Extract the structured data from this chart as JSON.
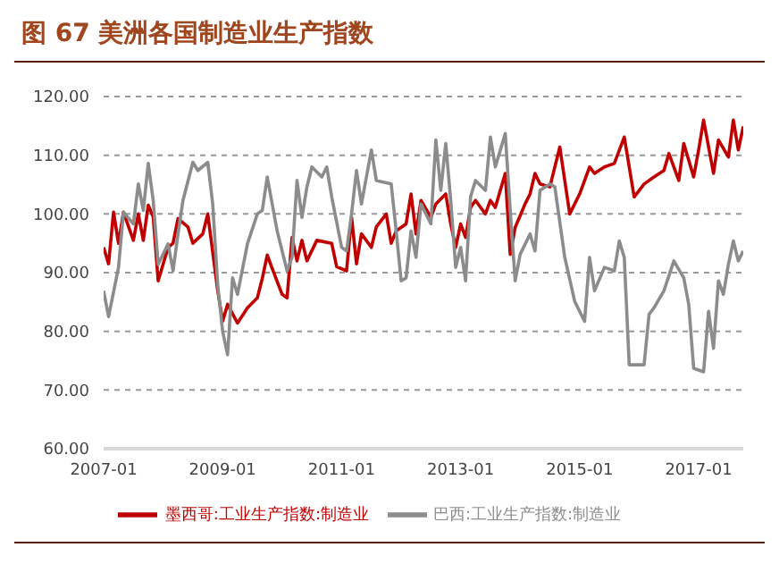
{
  "chart_data": {
    "type": "line",
    "title": "图 67  美洲各国制造业生产指数",
    "xlim": [
      "2007-01",
      "2017-10"
    ],
    "xticks": [
      "2007-01",
      "2009-01",
      "2011-01",
      "2013-01",
      "2015-01",
      "2017-01"
    ],
    "ylim": [
      60,
      120
    ],
    "yticks": [
      {
        "value": 60,
        "label": "60.00"
      },
      {
        "value": 70,
        "label": "70.00"
      },
      {
        "value": 80,
        "label": "80.00"
      },
      {
        "value": 90,
        "label": "90.00"
      },
      {
        "value": 100,
        "label": "100.00"
      },
      {
        "value": 110,
        "label": "110.00"
      },
      {
        "value": 120,
        "label": "120.00"
      }
    ],
    "grid": "y",
    "legend": "bottom",
    "marker": "none",
    "line_style": "solid",
    "series": [
      {
        "name": "墨西哥:工业生产指数:制造业",
        "color": "#c00000",
        "x": [
          "2007-01",
          "2007-02",
          "2007-03",
          "2007-04",
          "2007-05",
          "2007-07",
          "2007-08",
          "2007-09",
          "2007-10",
          "2007-11",
          "2007-12",
          "2008-02",
          "2008-03",
          "2008-04",
          "2008-06",
          "2008-07",
          "2008-09",
          "2008-10",
          "2008-12",
          "2009-01",
          "2009-02",
          "2009-04",
          "2009-06",
          "2009-08",
          "2009-09",
          "2009-10",
          "2009-11",
          "2010-01",
          "2010-02",
          "2010-03",
          "2010-04",
          "2010-05",
          "2010-06",
          "2010-08",
          "2010-11",
          "2010-12",
          "2011-02",
          "2011-03",
          "2011-04",
          "2011-05",
          "2011-07",
          "2011-08",
          "2011-10",
          "2011-11",
          "2011-12",
          "2012-02",
          "2012-03",
          "2012-04",
          "2012-05",
          "2012-07",
          "2012-08",
          "2012-10",
          "2012-11",
          "2012-12",
          "2013-01",
          "2013-02",
          "2013-03",
          "2013-04",
          "2013-06",
          "2013-07",
          "2013-08",
          "2013-10",
          "2013-11",
          "2013-12",
          "2014-02",
          "2014-03",
          "2014-04",
          "2014-05",
          "2014-07",
          "2014-09",
          "2014-11",
          "2015-01",
          "2015-03",
          "2015-04",
          "2015-06",
          "2015-08",
          "2015-10",
          "2015-12",
          "2016-02",
          "2016-04",
          "2016-06",
          "2016-07",
          "2016-09",
          "2016-10",
          "2016-12",
          "2017-01",
          "2017-02",
          "2017-04",
          "2017-05",
          "2017-07",
          "2017-08",
          "2017-09",
          "2017-10"
        ],
        "values": [
          94.3,
          91.5,
          100.3,
          95,
          100.3,
          95.5,
          100,
          95.5,
          101.5,
          99.5,
          88.6,
          94.3,
          95,
          99.2,
          97.8,
          95,
          96.6,
          100,
          87,
          81.7,
          84.6,
          81.4,
          84,
          85.7,
          89,
          93,
          90.7,
          86.3,
          85.7,
          96,
          92,
          95.5,
          92,
          95.5,
          95,
          91,
          90.3,
          99.5,
          91.5,
          96.6,
          94.3,
          97.8,
          100,
          95,
          97.1,
          98.3,
          103.4,
          96.6,
          102.3,
          99.4,
          101.7,
          103.4,
          98.3,
          94.3,
          98.3,
          96,
          101.1,
          102.3,
          100,
          102.3,
          101.1,
          106.9,
          93.1,
          97.7,
          101.7,
          103.4,
          106.9,
          105.1,
          104.6,
          111.4,
          100,
          103.4,
          108,
          106.9,
          108,
          108.6,
          113.1,
          102.9,
          105.1,
          106.3,
          107.4,
          110.3,
          105.7,
          112,
          106.3,
          110.9,
          116,
          106.9,
          112.6,
          109.7,
          116,
          110.9,
          114.9
        ]
      },
      {
        "name": "巴西:工业生产指数:制造业",
        "color": "#8c8c8c",
        "x": [
          "2007-01",
          "2007-02",
          "2007-04",
          "2007-05",
          "2007-07",
          "2007-08",
          "2007-09",
          "2007-10",
          "2007-11",
          "2007-12",
          "2008-02",
          "2008-03",
          "2008-04",
          "2008-05",
          "2008-07",
          "2008-08",
          "2008-10",
          "2008-11",
          "2008-12",
          "2009-01",
          "2009-02",
          "2009-03",
          "2009-04",
          "2009-06",
          "2009-08",
          "2009-09",
          "2009-10",
          "2009-12",
          "2010-02",
          "2010-03",
          "2010-04",
          "2010-05",
          "2010-06",
          "2010-07",
          "2010-09",
          "2010-10",
          "2010-11",
          "2011-01",
          "2011-02",
          "2011-03",
          "2011-04",
          "2011-05",
          "2011-07",
          "2011-08",
          "2011-11",
          "2011-12",
          "2012-01",
          "2012-02",
          "2012-03",
          "2012-04",
          "2012-05",
          "2012-07",
          "2012-08",
          "2012-09",
          "2012-10",
          "2012-11",
          "2012-12",
          "2013-01",
          "2013-02",
          "2013-03",
          "2013-04",
          "2013-06",
          "2013-07",
          "2013-08",
          "2013-10",
          "2013-11",
          "2013-12",
          "2014-01",
          "2014-03",
          "2014-04",
          "2014-05",
          "2014-07",
          "2014-08",
          "2014-10",
          "2014-12",
          "2015-02",
          "2015-03",
          "2015-04",
          "2015-06",
          "2015-08",
          "2015-09",
          "2015-10",
          "2015-11",
          "2016-02",
          "2016-03",
          "2016-04",
          "2016-06",
          "2016-08",
          "2016-10",
          "2016-11",
          "2016-12",
          "2017-02",
          "2017-03",
          "2017-04",
          "2017-05",
          "2017-06",
          "2017-07",
          "2017-08",
          "2017-09",
          "2017-10"
        ],
        "values": [
          86.9,
          82.5,
          90.9,
          100.3,
          98.3,
          105.1,
          100.6,
          108.6,
          102.3,
          91.4,
          94.9,
          90.3,
          96.6,
          102.3,
          108.8,
          107.4,
          108.8,
          101.7,
          88,
          80,
          76,
          89.1,
          86.3,
          94.9,
          100,
          100.6,
          106.3,
          97.1,
          90.3,
          92.6,
          105.7,
          99.4,
          104.6,
          108,
          106.3,
          108,
          102.9,
          94.3,
          93.7,
          100,
          107.4,
          101.7,
          110.9,
          105.7,
          105.1,
          97.1,
          88.6,
          89.1,
          97.1,
          92.6,
          101.7,
          98.3,
          112.6,
          104,
          112,
          102.3,
          90.9,
          94.3,
          88.6,
          102.9,
          105.7,
          104,
          113.1,
          108,
          113.7,
          100.6,
          88.6,
          93.1,
          96.6,
          93.7,
          104,
          105.1,
          104.6,
          92.6,
          85.1,
          81.7,
          92.6,
          86.9,
          90.9,
          90.3,
          95.4,
          92.6,
          74.3,
          74.3,
          82.9,
          84,
          86.9,
          92,
          89.1,
          84.6,
          73.7,
          73.1,
          83.4,
          77.1,
          88.6,
          86.3,
          91.4,
          95.4,
          92,
          93.7
        ]
      }
    ]
  }
}
